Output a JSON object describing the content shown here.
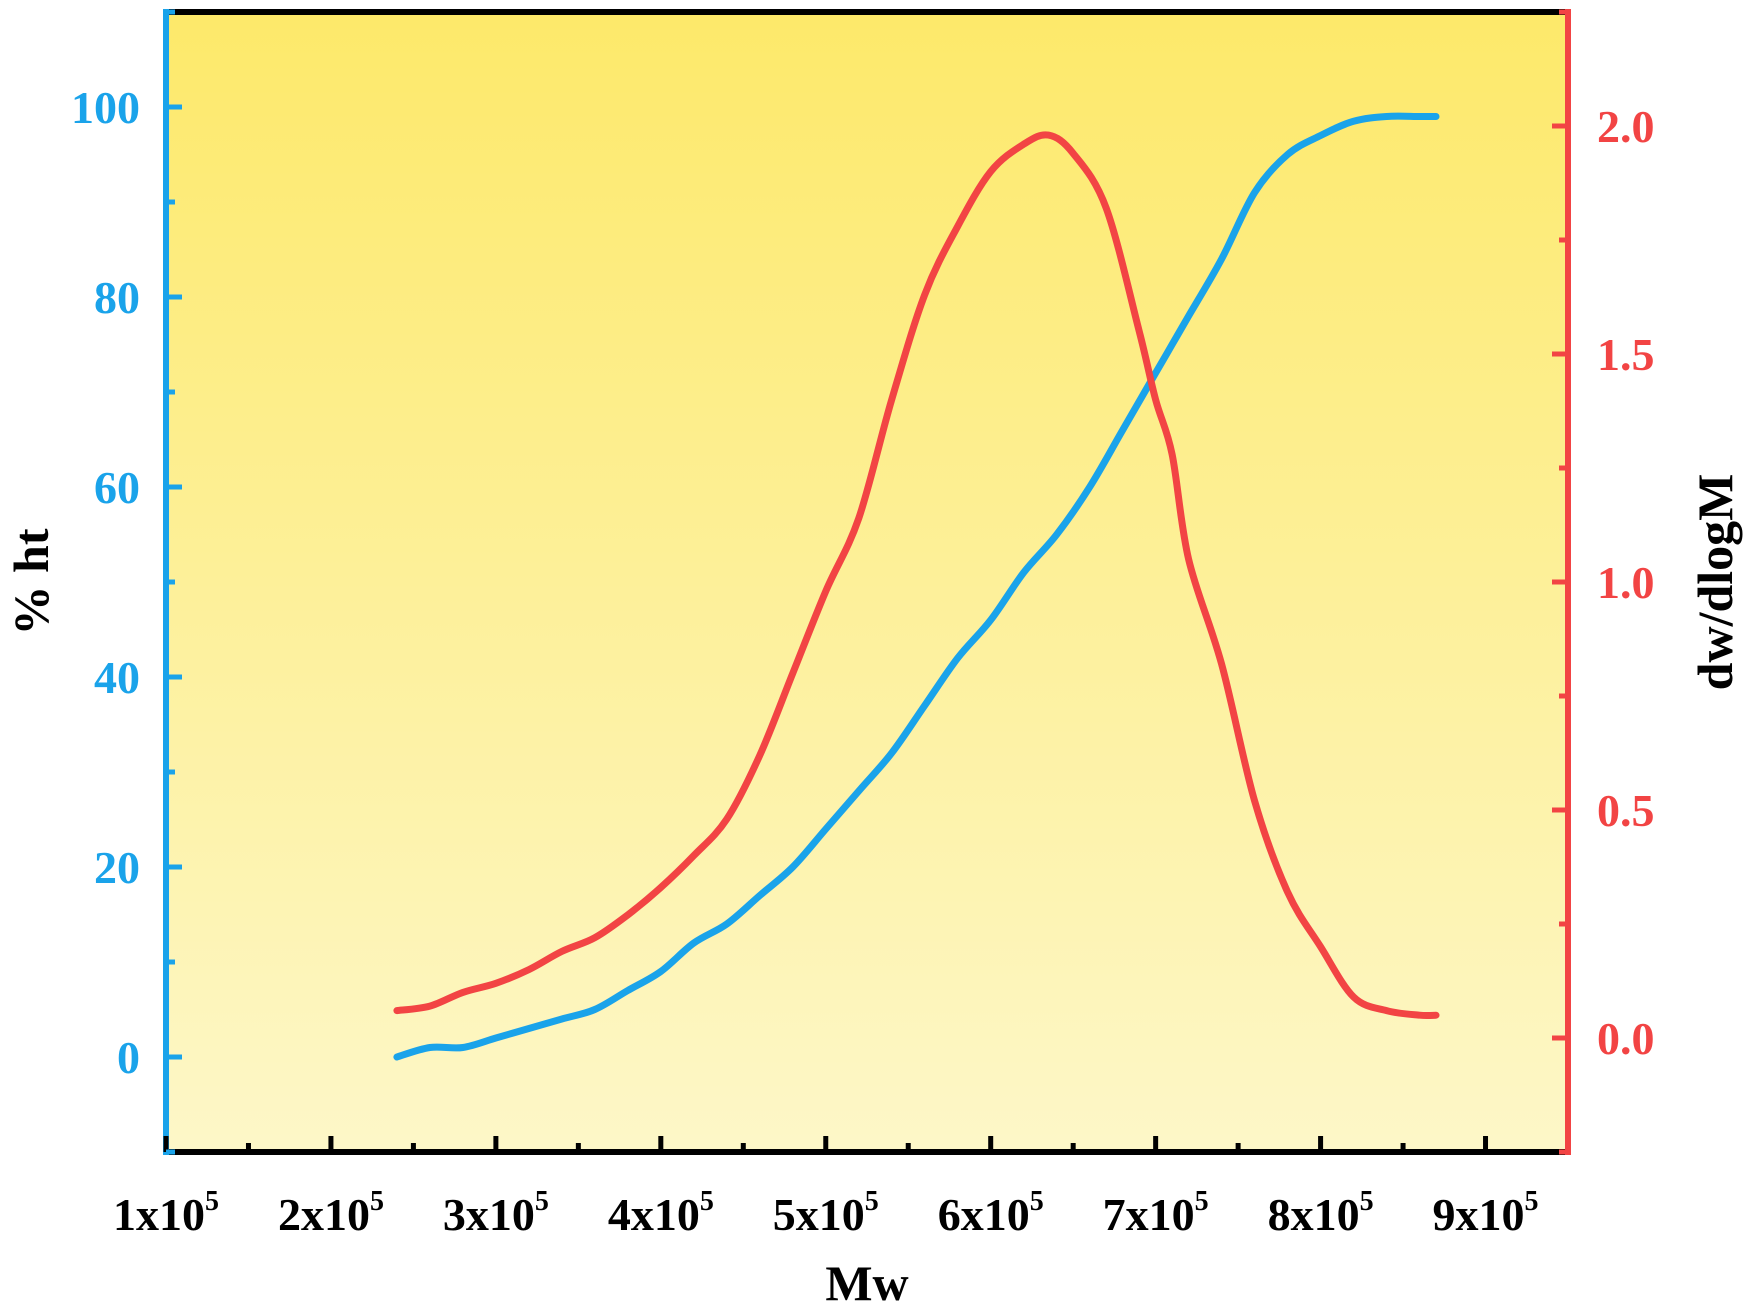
{
  "chart_data": {
    "type": "line",
    "xlabel": "Mw",
    "ylabel_left": "% ht",
    "ylabel_right": "dw/dlogM",
    "xlim": [
      100000,
      950000
    ],
    "ylim_left": [
      -10,
      110
    ],
    "ylim_right": [
      -0.25,
      2.25
    ],
    "x_ticks": [
      {
        "mantissa": "1",
        "base": "x10",
        "exp": "5",
        "value": 100000
      },
      {
        "mantissa": "2",
        "base": "x10",
        "exp": "5",
        "value": 200000
      },
      {
        "mantissa": "3",
        "base": "x10",
        "exp": "5",
        "value": 300000
      },
      {
        "mantissa": "4",
        "base": "x10",
        "exp": "5",
        "value": 400000
      },
      {
        "mantissa": "5",
        "base": "x10",
        "exp": "5",
        "value": 500000
      },
      {
        "mantissa": "6",
        "base": "x10",
        "exp": "5",
        "value": 600000
      },
      {
        "mantissa": "7",
        "base": "x10",
        "exp": "5",
        "value": 700000
      },
      {
        "mantissa": "8",
        "base": "x10",
        "exp": "5",
        "value": 800000
      },
      {
        "mantissa": "9",
        "base": "x10",
        "exp": "5",
        "value": 900000
      }
    ],
    "y_left_ticks": [
      "0",
      "20",
      "40",
      "60",
      "80",
      "100"
    ],
    "y_right_ticks": [
      "0.0",
      "0.5",
      "1.0",
      "1.5",
      "2.0"
    ],
    "grid": false,
    "legend": "none",
    "colors": {
      "left_axis": "#1aa3ea",
      "right_axis": "#f24444",
      "bg_top": "#fde96a",
      "bg_bottom": "#fdf7c8"
    },
    "series": [
      {
        "axis": "left",
        "color": "#1aa3ea",
        "x": [
          240000,
          260000,
          280000,
          300000,
          320000,
          340000,
          360000,
          380000,
          400000,
          420000,
          440000,
          460000,
          480000,
          500000,
          520000,
          540000,
          560000,
          580000,
          600000,
          620000,
          640000,
          660000,
          680000,
          700000,
          710000,
          720000,
          740000,
          760000,
          780000,
          800000,
          820000,
          840000,
          860000,
          870000
        ],
        "values": [
          0,
          1,
          1,
          2,
          3,
          4,
          5,
          7,
          9,
          12,
          14,
          17,
          20,
          24,
          28,
          32,
          37,
          42,
          46,
          51,
          55,
          60,
          66,
          72,
          75,
          78,
          84,
          91,
          95,
          97,
          98.5,
          99,
          99,
          99
        ]
      },
      {
        "axis": "right",
        "color": "#f24444",
        "x": [
          240000,
          260000,
          280000,
          300000,
          320000,
          340000,
          360000,
          380000,
          400000,
          420000,
          440000,
          460000,
          480000,
          500000,
          520000,
          540000,
          560000,
          580000,
          600000,
          620000,
          635000,
          650000,
          670000,
          690000,
          700000,
          710000,
          720000,
          740000,
          760000,
          780000,
          800000,
          820000,
          840000,
          860000,
          870000
        ],
        "values": [
          0.06,
          0.07,
          0.1,
          0.12,
          0.15,
          0.19,
          0.22,
          0.27,
          0.33,
          0.4,
          0.48,
          0.62,
          0.8,
          0.98,
          1.14,
          1.4,
          1.63,
          1.78,
          1.9,
          1.96,
          1.98,
          1.94,
          1.82,
          1.55,
          1.4,
          1.28,
          1.05,
          0.82,
          0.52,
          0.32,
          0.2,
          0.09,
          0.06,
          0.05,
          0.05
        ]
      }
    ]
  }
}
